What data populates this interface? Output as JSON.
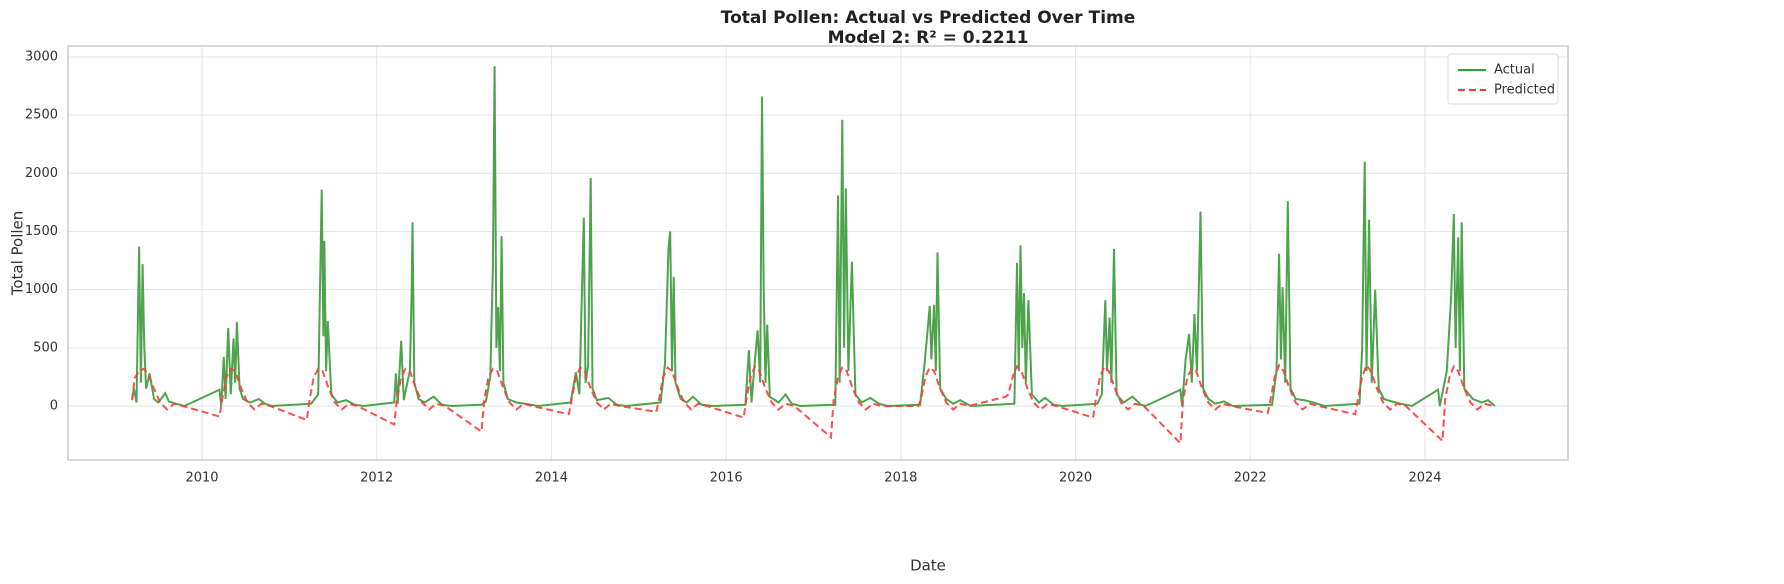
{
  "chart_data": {
    "type": "line",
    "title": "Total Pollen: Actual vs Predicted Over Time",
    "subtitle": "Model 2: R² = 0.2211",
    "x_label": "Date",
    "y_label": "Total Pollen",
    "xlim": [
      2008.466,
      2025.637
    ],
    "ylim": [
      -464,
      3094
    ],
    "xticks": [
      2010,
      2012,
      2014,
      2016,
      2018,
      2020,
      2022,
      2024
    ],
    "yticks": [
      0,
      500,
      1000,
      1500,
      2000,
      2500,
      3000
    ],
    "grid": true,
    "legend": "upper right",
    "series": [
      {
        "name": "Actual",
        "color": "#3a9a3a",
        "dash": "solid",
        "x": [
          2009.2,
          2009.22,
          2009.25,
          2009.28,
          2009.3,
          2009.32,
          2009.34,
          2009.36,
          2009.4,
          2009.45,
          2009.5,
          2009.58,
          2009.62,
          2009.7,
          2009.8,
          2010.2,
          2010.22,
          2010.25,
          2010.27,
          2010.3,
          2010.33,
          2010.36,
          2010.38,
          2010.4,
          2010.43,
          2010.47,
          2010.55,
          2010.65,
          2010.72,
          2010.8,
          2011.25,
          2011.33,
          2011.36,
          2011.37,
          2011.39,
          2011.4,
          2011.42,
          2011.44,
          2011.48,
          2011.55,
          2011.65,
          2011.75,
          2011.85,
          2012.2,
          2012.22,
          2012.24,
          2012.28,
          2012.31,
          2012.35,
          2012.38,
          2012.4,
          2012.41,
          2012.43,
          2012.48,
          2012.55,
          2012.65,
          2012.75,
          2012.85,
          2013.2,
          2013.25,
          2013.3,
          2013.33,
          2013.35,
          2013.37,
          2013.39,
          2013.41,
          2013.43,
          2013.45,
          2013.5,
          2013.6,
          2013.7,
          2013.85,
          2014.22,
          2014.28,
          2014.32,
          2014.37,
          2014.39,
          2014.42,
          2014.45,
          2014.47,
          2014.52,
          2014.65,
          2014.75,
          2014.85,
          2015.25,
          2015.3,
          2015.34,
          2015.36,
          2015.38,
          2015.4,
          2015.42,
          2015.48,
          2015.55,
          2015.62,
          2015.72,
          2015.85,
          2016.22,
          2016.26,
          2016.29,
          2016.33,
          2016.36,
          2016.39,
          2016.41,
          2016.43,
          2016.45,
          2016.47,
          2016.5,
          2016.6,
          2016.68,
          2016.75,
          2016.85,
          2017.25,
          2017.28,
          2017.3,
          2017.33,
          2017.35,
          2017.37,
          2017.4,
          2017.44,
          2017.48,
          2017.55,
          2017.65,
          2017.75,
          2017.85,
          2018.22,
          2018.27,
          2018.3,
          2018.33,
          2018.35,
          2018.38,
          2018.4,
          2018.42,
          2018.45,
          2018.52,
          2018.6,
          2018.68,
          2018.8,
          2019.3,
          2019.33,
          2019.35,
          2019.37,
          2019.39,
          2019.41,
          2019.43,
          2019.46,
          2019.5,
          2019.58,
          2019.65,
          2019.75,
          2019.85,
          2020.25,
          2020.3,
          2020.34,
          2020.36,
          2020.39,
          2020.41,
          2020.44,
          2020.47,
          2020.55,
          2020.65,
          2020.75,
          2020.8,
          2021.2,
          2021.22,
          2021.26,
          2021.3,
          2021.33,
          2021.36,
          2021.39,
          2021.43,
          2021.46,
          2021.52,
          2021.6,
          2021.7,
          2021.8,
          2022.25,
          2022.3,
          2022.33,
          2022.35,
          2022.37,
          2022.4,
          2022.43,
          2022.46,
          2022.52,
          2022.62,
          2022.72,
          2022.85,
          2023.25,
          2023.28,
          2023.31,
          2023.33,
          2023.36,
          2023.39,
          2023.43,
          2023.47,
          2023.53,
          2023.62,
          2023.72,
          2023.85,
          2024.15,
          2024.17,
          2024.25,
          2024.3,
          2024.33,
          2024.35,
          2024.38,
          2024.4,
          2024.42,
          2024.45,
          2024.55,
          2024.65,
          2024.72,
          2024.8
        ],
        "values": [
          60,
          150,
          30,
          1370,
          200,
          1220,
          500,
          150,
          280,
          60,
          30,
          110,
          40,
          20,
          0,
          140,
          0,
          420,
          60,
          670,
          100,
          580,
          200,
          720,
          150,
          60,
          30,
          60,
          20,
          0,
          20,
          100,
          1400,
          1860,
          600,
          1420,
          300,
          730,
          100,
          30,
          50,
          10,
          0,
          30,
          280,
          20,
          560,
          50,
          200,
          300,
          1000,
          1580,
          200,
          60,
          30,
          80,
          10,
          0,
          10,
          40,
          250,
          1200,
          2920,
          500,
          850,
          300,
          1460,
          200,
          60,
          30,
          20,
          0,
          30,
          290,
          100,
          1620,
          200,
          350,
          1960,
          150,
          50,
          70,
          10,
          0,
          30,
          370,
          1360,
          1500,
          300,
          1110,
          200,
          60,
          30,
          80,
          10,
          0,
          10,
          480,
          30,
          400,
          650,
          200,
          2660,
          1000,
          200,
          700,
          80,
          30,
          100,
          20,
          0,
          10,
          1810,
          200,
          2460,
          500,
          1870,
          300,
          1240,
          100,
          30,
          70,
          20,
          0,
          10,
          350,
          600,
          860,
          400,
          870,
          300,
          1320,
          150,
          60,
          20,
          50,
          0,
          20,
          1230,
          300,
          1380,
          500,
          970,
          200,
          910,
          100,
          30,
          70,
          10,
          0,
          20,
          100,
          910,
          300,
          760,
          200,
          1350,
          100,
          30,
          80,
          10,
          0,
          140,
          0,
          400,
          620,
          200,
          790,
          300,
          1670,
          150,
          60,
          20,
          40,
          0,
          10,
          300,
          1310,
          400,
          1020,
          200,
          1760,
          150,
          60,
          50,
          30,
          0,
          20,
          480,
          2100,
          300,
          1600,
          200,
          1000,
          150,
          60,
          40,
          20,
          0,
          140,
          0,
          300,
          950,
          1650,
          500,
          1450,
          300,
          1580,
          150,
          60,
          30,
          50,
          0
        ]
      },
      {
        "name": "Predicted",
        "color": "#ff3b3b",
        "dash": "dashed",
        "x": [
          2009.2,
          2009.23,
          2009.28,
          2009.33,
          2009.38,
          2009.45,
          2009.52,
          2009.6,
          2009.68,
          2009.78,
          2010.2,
          2010.23,
          2010.28,
          2010.33,
          2010.38,
          2010.45,
          2010.52,
          2010.6,
          2010.68,
          2010.78,
          2011.2,
          2011.23,
          2011.28,
          2011.33,
          2011.38,
          2011.45,
          2011.52,
          2011.6,
          2011.68,
          2011.78,
          2012.2,
          2012.23,
          2012.28,
          2012.33,
          2012.38,
          2012.45,
          2012.52,
          2012.6,
          2012.68,
          2012.78,
          2013.2,
          2013.23,
          2013.28,
          2013.33,
          2013.38,
          2013.45,
          2013.52,
          2013.6,
          2013.68,
          2013.78,
          2014.2,
          2014.23,
          2014.28,
          2014.33,
          2014.38,
          2014.45,
          2014.52,
          2014.6,
          2014.68,
          2014.78,
          2015.2,
          2015.23,
          2015.28,
          2015.33,
          2015.38,
          2015.45,
          2015.52,
          2015.6,
          2015.68,
          2015.78,
          2016.2,
          2016.23,
          2016.28,
          2016.33,
          2016.38,
          2016.45,
          2016.52,
          2016.6,
          2016.68,
          2016.78,
          2017.2,
          2017.23,
          2017.28,
          2017.33,
          2017.38,
          2017.45,
          2017.52,
          2017.6,
          2017.68,
          2017.78,
          2018.2,
          2018.23,
          2018.28,
          2018.33,
          2018.38,
          2018.45,
          2018.52,
          2018.6,
          2018.68,
          2018.78,
          2019.2,
          2019.23,
          2019.28,
          2019.33,
          2019.38,
          2019.45,
          2019.52,
          2019.6,
          2019.68,
          2019.78,
          2020.2,
          2020.23,
          2020.28,
          2020.33,
          2020.38,
          2020.45,
          2020.52,
          2020.6,
          2020.68,
          2020.78,
          2021.2,
          2021.23,
          2021.28,
          2021.33,
          2021.38,
          2021.45,
          2021.52,
          2021.6,
          2021.68,
          2021.78,
          2022.2,
          2022.23,
          2022.28,
          2022.33,
          2022.38,
          2022.45,
          2022.52,
          2022.6,
          2022.68,
          2022.78,
          2023.2,
          2023.23,
          2023.28,
          2023.33,
          2023.38,
          2023.45,
          2023.52,
          2023.6,
          2023.68,
          2023.78,
          2024.2,
          2024.23,
          2024.28,
          2024.33,
          2024.38,
          2024.45,
          2024.52,
          2024.6,
          2024.68,
          2024.78
        ],
        "values": [
          50,
          240,
          300,
          320,
          280,
          150,
          30,
          -30,
          20,
          0,
          -90,
          50,
          250,
          320,
          300,
          150,
          30,
          -30,
          20,
          0,
          -120,
          50,
          250,
          320,
          300,
          150,
          30,
          -30,
          20,
          0,
          -160,
          50,
          250,
          320,
          300,
          150,
          30,
          -30,
          20,
          0,
          -220,
          50,
          250,
          320,
          300,
          150,
          30,
          -30,
          20,
          0,
          -70,
          50,
          250,
          330,
          300,
          150,
          30,
          -30,
          20,
          0,
          -50,
          50,
          250,
          330,
          300,
          150,
          30,
          -30,
          20,
          0,
          -100,
          50,
          250,
          340,
          300,
          150,
          30,
          -30,
          20,
          0,
          -270,
          50,
          250,
          330,
          300,
          150,
          30,
          -30,
          20,
          0,
          0,
          50,
          250,
          330,
          300,
          150,
          30,
          -30,
          20,
          0,
          80,
          100,
          250,
          340,
          300,
          150,
          30,
          -30,
          20,
          0,
          -100,
          50,
          250,
          340,
          300,
          150,
          30,
          -30,
          20,
          0,
          -320,
          50,
          250,
          320,
          300,
          150,
          30,
          -30,
          20,
          0,
          -60,
          50,
          250,
          350,
          300,
          150,
          30,
          -30,
          20,
          0,
          -70,
          50,
          250,
          350,
          300,
          150,
          30,
          -30,
          20,
          0,
          -300,
          50,
          250,
          340,
          300,
          150,
          30,
          -30,
          20,
          0
        ]
      }
    ]
  }
}
